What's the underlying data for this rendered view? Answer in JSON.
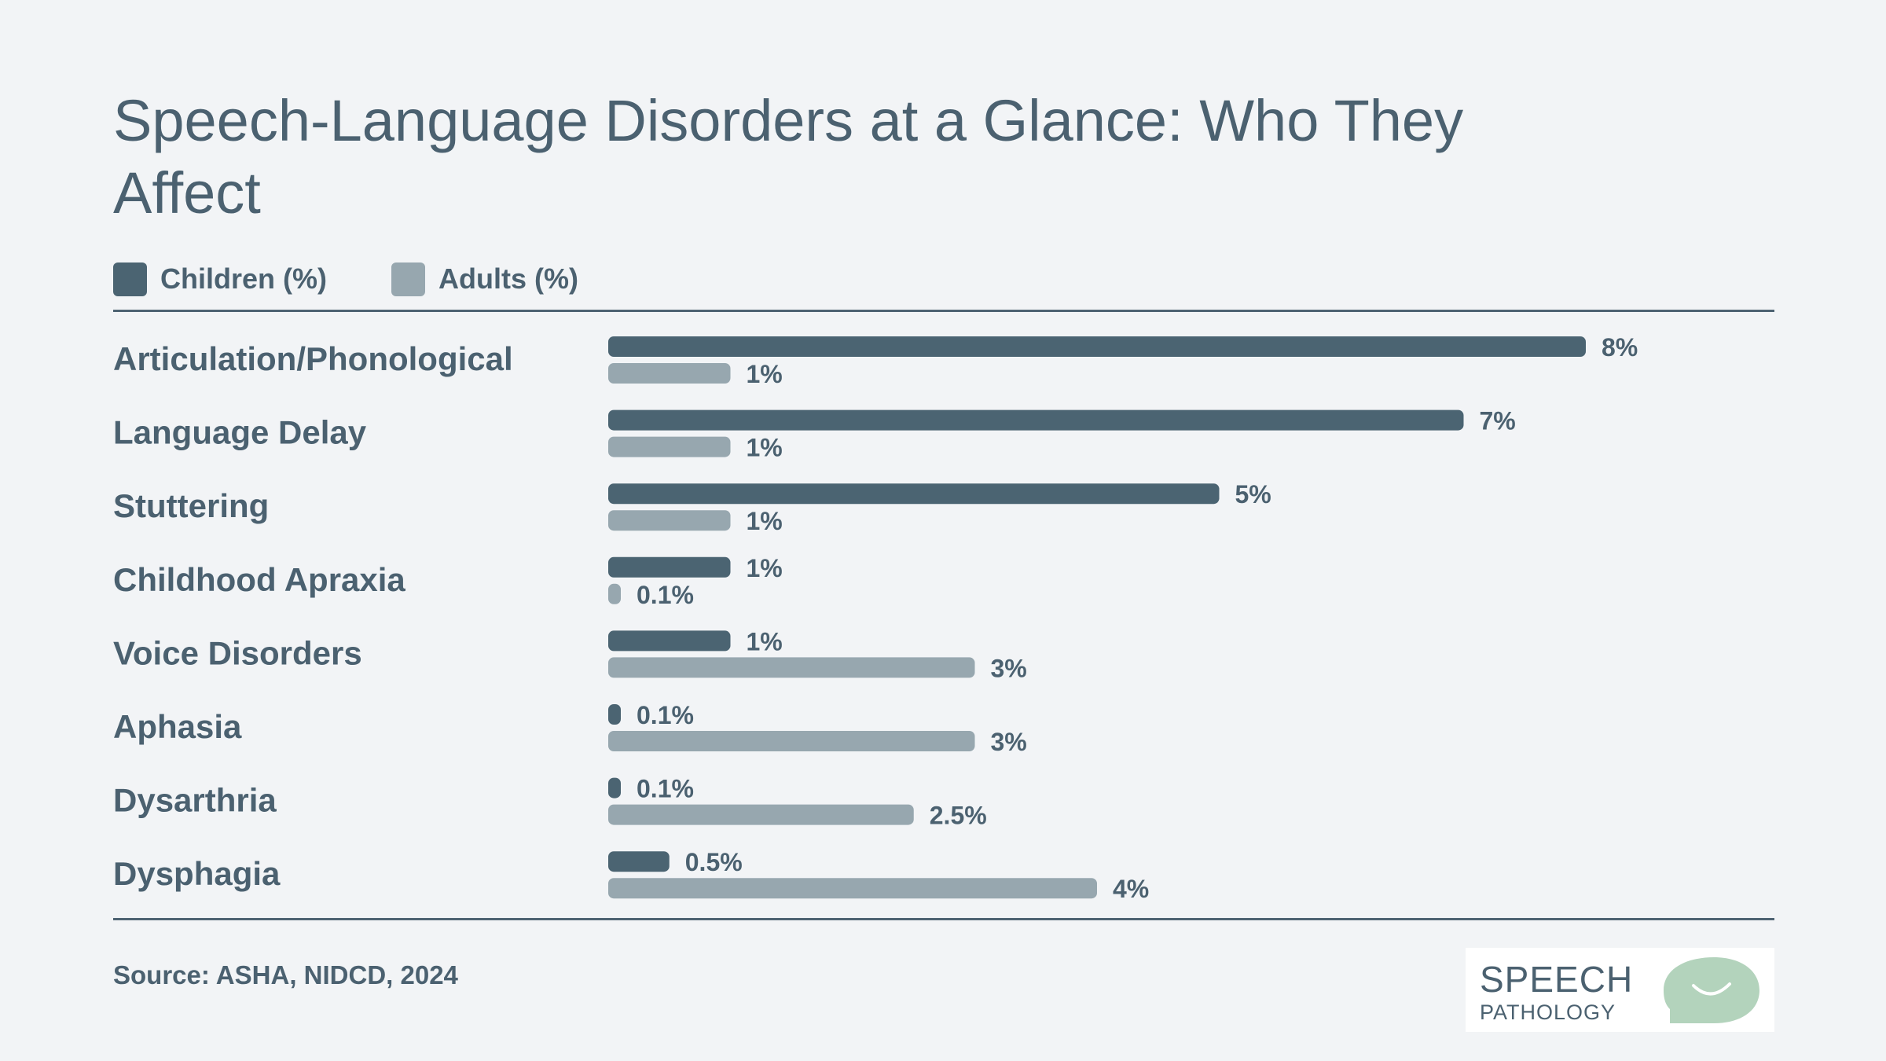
{
  "chart_data": {
    "type": "bar",
    "orientation": "horizontal",
    "title": "Speech-Language Disorders at a Glance: Who They Affect",
    "categories": [
      "Articulation/Phonological",
      "Language Delay",
      "Stuttering",
      "Childhood Apraxia",
      "Voice Disorders",
      "Aphasia",
      "Dysarthria",
      "Dysphagia"
    ],
    "series": [
      {
        "name": "Children (%)",
        "color": "#4b6472",
        "values": [
          8,
          7,
          5,
          1,
          1,
          0.1,
          0.1,
          0.5
        ],
        "labels": [
          "8%",
          "7%",
          "5%",
          "1%",
          "1%",
          "0.1%",
          "0.1%",
          "0.5%"
        ]
      },
      {
        "name": "Adults (%)",
        "color": "#97a7af",
        "values": [
          1,
          1,
          1,
          0.1,
          3,
          3,
          2.5,
          4
        ],
        "labels": [
          "1%",
          "1%",
          "1%",
          "0.1%",
          "3%",
          "3%",
          "2.5%",
          "4%"
        ]
      }
    ],
    "xlim": [
      0,
      8
    ],
    "grid": false,
    "legend": "top-left"
  },
  "source": "Source: ASHA, NIDCD, 2024",
  "logo": {
    "line1": "SPEECH",
    "line2": "PATHOLOGY"
  }
}
